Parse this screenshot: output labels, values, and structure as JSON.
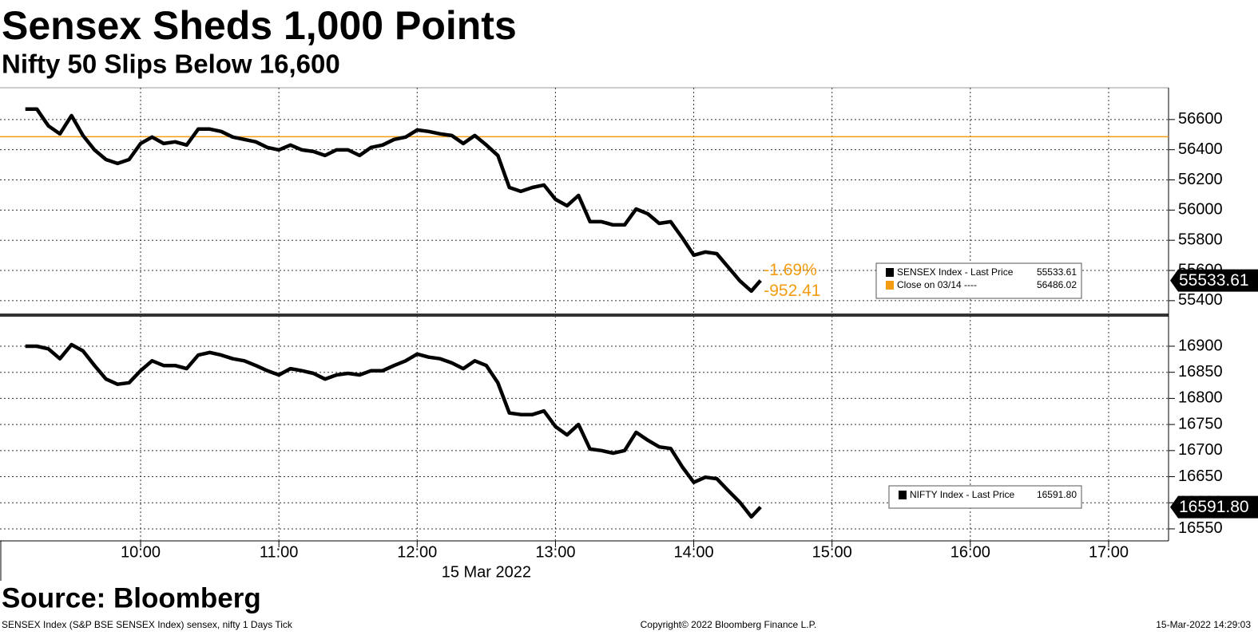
{
  "header": {
    "title": "Sensex Sheds 1,000 Points",
    "subtitle": "Nifty 50 Slips Below 16,600"
  },
  "footer": {
    "source": "Source: Bloomberg",
    "description": "SENSEX Index (S&P BSE SENSEX Index) sensex, nifty 1 Days  Tick",
    "copyright": "Copyright© 2022 Bloomberg Finance L.P.",
    "timestamp": "15-Mar-2022 14:29:03"
  },
  "chart_data": [
    {
      "type": "line",
      "grid": true,
      "legend": "right",
      "x": [
        "09:10",
        "09:15",
        "09:20",
        "09:25",
        "09:30",
        "09:35",
        "09:40",
        "09:45",
        "09:50",
        "09:55",
        "10:00",
        "10:05",
        "10:10",
        "10:15",
        "10:20",
        "10:25",
        "10:30",
        "10:35",
        "10:40",
        "10:45",
        "10:50",
        "10:55",
        "11:00",
        "11:05",
        "11:10",
        "11:15",
        "11:20",
        "11:25",
        "11:30",
        "11:35",
        "11:40",
        "11:45",
        "11:50",
        "11:55",
        "12:00",
        "12:05",
        "12:10",
        "12:15",
        "12:20",
        "12:25",
        "12:30",
        "12:35",
        "12:40",
        "12:45",
        "12:50",
        "12:55",
        "13:00",
        "13:05",
        "13:10",
        "13:15",
        "13:20",
        "13:25",
        "13:30",
        "13:35",
        "13:40",
        "13:45",
        "13:50",
        "13:55",
        "14:00",
        "14:05",
        "14:10",
        "14:15",
        "14:20",
        "14:25",
        "14:29"
      ],
      "series": [
        {
          "name": "SENSEX Index - Last Price",
          "color": "#000000",
          "last_value": 55533.61,
          "values": [
            56669,
            56669,
            56558,
            56505,
            56626,
            56494,
            56399,
            56335,
            56309,
            56335,
            56441,
            56484,
            56441,
            56452,
            56431,
            56537,
            56537,
            56521,
            56484,
            56468,
            56452,
            56415,
            56399,
            56431,
            56399,
            56388,
            56362,
            56399,
            56399,
            56362,
            56415,
            56431,
            56468,
            56484,
            56531,
            56521,
            56505,
            56494,
            56441,
            56494,
            56431,
            56362,
            56150,
            56124,
            56150,
            56166,
            56071,
            56029,
            56097,
            55923,
            55923,
            55902,
            55902,
            56007,
            55976,
            55912,
            55923,
            55817,
            55701,
            55722,
            55711,
            55621,
            55531,
            55463,
            55533.61
          ]
        }
      ],
      "reference_line": {
        "name": "Close on 03/14 ----",
        "value": 56486.02,
        "color": "#f39c12"
      },
      "annotations": [
        "-1.69%",
        "-952.41"
      ],
      "xlim": [
        "08:59",
        "17:26"
      ],
      "xticks": [
        "10:00",
        "11:00",
        "12:00",
        "13:00",
        "14:00",
        "15:00",
        "16:00",
        "17:00"
      ],
      "ylim": [
        55320,
        56800
      ],
      "yticks": [
        55400,
        55600,
        55800,
        56000,
        56200,
        56400,
        56600
      ]
    },
    {
      "type": "line",
      "grid": true,
      "legend": "right",
      "x": [
        "09:10",
        "09:15",
        "09:20",
        "09:25",
        "09:30",
        "09:35",
        "09:40",
        "09:45",
        "09:50",
        "09:55",
        "10:00",
        "10:05",
        "10:10",
        "10:15",
        "10:20",
        "10:25",
        "10:30",
        "10:35",
        "10:40",
        "10:45",
        "10:50",
        "10:55",
        "11:00",
        "11:05",
        "11:10",
        "11:15",
        "11:20",
        "11:25",
        "11:30",
        "11:35",
        "11:40",
        "11:45",
        "11:50",
        "11:55",
        "12:00",
        "12:05",
        "12:10",
        "12:15",
        "12:20",
        "12:25",
        "12:30",
        "12:35",
        "12:40",
        "12:45",
        "12:50",
        "12:55",
        "13:00",
        "13:05",
        "13:10",
        "13:15",
        "13:20",
        "13:25",
        "13:30",
        "13:35",
        "13:40",
        "13:45",
        "13:50",
        "13:55",
        "14:00",
        "14:05",
        "14:10",
        "14:15",
        "14:20",
        "14:25",
        "14:29"
      ],
      "series": [
        {
          "name": "NIFTY Index - Last Price",
          "color": "#000000",
          "last_value": {
            "value": 16591.8,
            "label": "16591.80"
          },
          "values": [
            16900,
            16900,
            16895,
            16876,
            16903,
            16891,
            16863,
            16837,
            16827,
            16830,
            16853,
            16872,
            16863,
            16863,
            16857,
            16883,
            16888,
            16883,
            16876,
            16872,
            16863,
            16853,
            16845,
            16857,
            16853,
            16848,
            16837,
            16845,
            16848,
            16845,
            16853,
            16853,
            16863,
            16872,
            16885,
            16879,
            16876,
            16868,
            16857,
            16872,
            16863,
            16830,
            16772,
            16769,
            16769,
            16776,
            16746,
            16730,
            16750,
            16703,
            16700,
            16695,
            16700,
            16735,
            16720,
            16707,
            16704,
            16669,
            16639,
            16649,
            16646,
            16623,
            16601,
            16573,
            16591.8
          ]
        }
      ],
      "xlabel": "15 Mar 2022",
      "xlim": [
        "08:59",
        "17:26"
      ],
      "xticks": [
        "10:00",
        "11:00",
        "12:00",
        "13:00",
        "14:00",
        "15:00",
        "16:00",
        "17:00"
      ],
      "ylim": [
        16527,
        16955
      ],
      "yticks": [
        16550,
        16600,
        16650,
        16700,
        16750,
        16800,
        16850,
        16900
      ]
    }
  ]
}
